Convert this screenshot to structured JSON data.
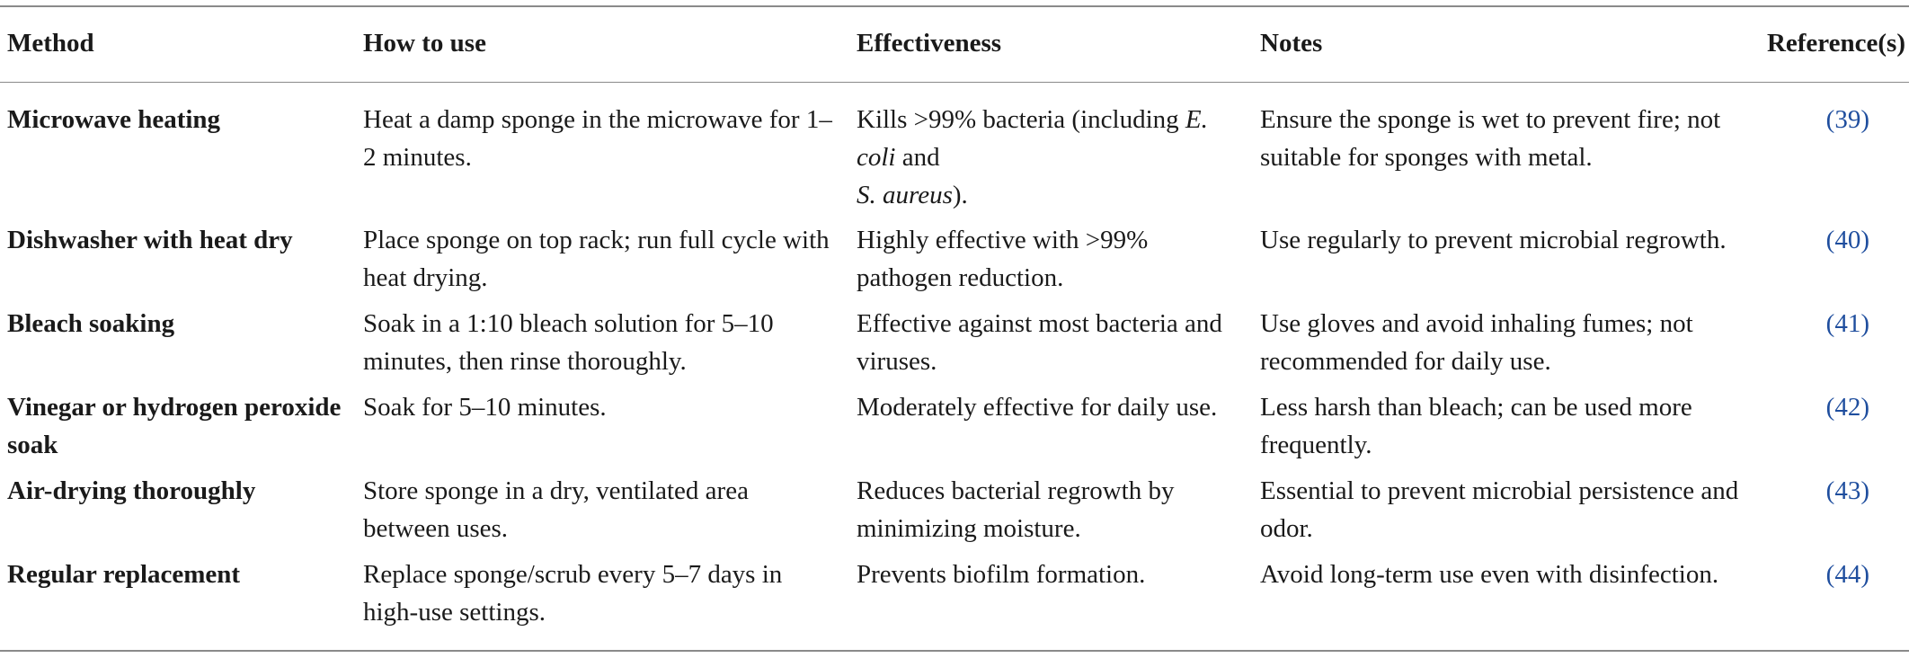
{
  "table": {
    "headers": {
      "method": "Method",
      "how": "How to use",
      "effectiveness": "Effectiveness",
      "notes": "Notes",
      "reference": "Reference(s)"
    },
    "rows": [
      {
        "method": "Microwave heating",
        "how": "Heat a damp sponge in the microwave for 1–2 minutes.",
        "effectiveness_parts": [
          "Kills >99% bacteria (including ",
          "E. coli",
          " and ",
          "S. aureus",
          ")."
        ],
        "notes": "Ensure the sponge is wet to prevent fire; not suitable for sponges with metal.",
        "reference": "(39)"
      },
      {
        "method": "Dishwasher with heat dry",
        "how": "Place sponge on top rack; run full cycle with heat drying.",
        "effectiveness": "Highly effective with >99% pathogen reduction.",
        "notes": "Use regularly to prevent microbial regrowth.",
        "reference": "(40)"
      },
      {
        "method": "Bleach soaking",
        "how": "Soak in a 1:10 bleach solution for 5–10 minutes, then rinse thoroughly.",
        "effectiveness": "Effective against most bacteria and viruses.",
        "notes": "Use gloves and avoid inhaling fumes; not recommended for daily use.",
        "reference": "(41)"
      },
      {
        "method": "Vinegar or hydrogen peroxide soak",
        "how": "Soak for 5–10 minutes.",
        "effectiveness": "Moderately effective for daily use.",
        "notes": "Less harsh than bleach; can be used more frequently.",
        "reference": "(42)"
      },
      {
        "method": "Air-drying thoroughly",
        "how": "Store sponge in a dry, ventilated area between uses.",
        "effectiveness": "Reduces bacterial regrowth by minimizing moisture.",
        "notes": "Essential to prevent microbial persistence and odor.",
        "reference": "(43)"
      },
      {
        "method": "Regular replacement",
        "how": "Replace sponge/scrub every 5–7 days in high-use settings.",
        "effectiveness": "Prevents biofilm formation.",
        "notes": "Avoid long-term use even with disinfection.",
        "reference": "(44)"
      }
    ]
  },
  "colors": {
    "text": "#1a1a1a",
    "reference_link": "#1f4e9e",
    "rule": "#8a8a8a"
  }
}
